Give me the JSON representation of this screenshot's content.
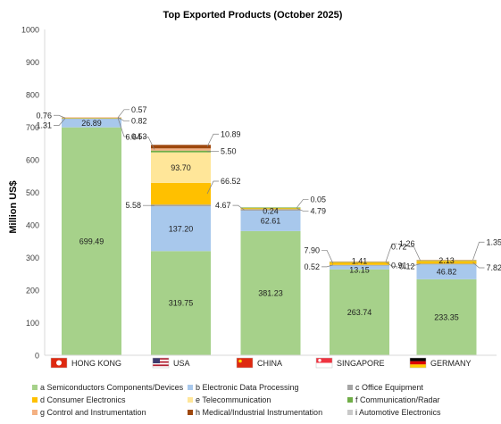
{
  "chart_data": {
    "type": "bar",
    "stacked": true,
    "title": "Top Exported Products (October 2025)",
    "xlabel": "",
    "ylabel": "Million US$",
    "ylim": [
      0,
      1000
    ],
    "yticks": [
      0,
      100,
      200,
      300,
      400,
      500,
      600,
      700,
      800,
      900,
      1000
    ],
    "grid": false,
    "legend_position": "bottom",
    "categories": [
      "HONG KONG",
      "USA",
      "CHINA",
      "SINGAPORE",
      "GERMANY"
    ],
    "category_flags": [
      "hong-kong-flag-icon",
      "usa-flag-icon",
      "china-flag-icon",
      "singapore-flag-icon",
      "germany-flag-icon"
    ],
    "series": [
      {
        "name": "a Semiconductors Components/Devices",
        "color": "#a6d18a",
        "values": [
          699.49,
          319.75,
          381.23,
          263.74,
          233.35
        ]
      },
      {
        "name": "b Electronic Data Processing",
        "color": "#a8c8ec",
        "values": [
          26.89,
          137.2,
          62.61,
          13.15,
          46.82
        ]
      },
      {
        "name": "c Office Equipment",
        "color": "#a5a5a5",
        "values": [
          1.31,
          5.58,
          4.67,
          0.52,
          0.91
        ]
      },
      {
        "name": "d Consumer Electronics",
        "color": "#ffc000",
        "values": [
          0.76,
          66.52,
          4.79,
          7.9,
          7.82
        ]
      },
      {
        "name": "e Telecommunication",
        "color": "#ffe699",
        "values": [
          0.53,
          93.7,
          0.24,
          1.41,
          2.13
        ]
      },
      {
        "name": "f Communication/Radar",
        "color": "#70ad47",
        "values": [
          0.57,
          5.5,
          0.05,
          0.12,
          0.72
        ]
      },
      {
        "name": "g Control and Instrumentation",
        "color": "#f4b183",
        "values": [
          0.82,
          6.64,
          0.0,
          1.26,
          1.35
        ]
      },
      {
        "name": "h Medical/Industrial Instrumentation",
        "color": "#9e480e",
        "values": [
          0.0,
          10.89,
          0.0,
          0.0,
          0.0
        ]
      },
      {
        "name": "i Automotive Electronics",
        "color": "#c9c9c9",
        "values": [
          0.0,
          0.0,
          0.0,
          0.0,
          0.0
        ]
      }
    ],
    "data_labels": [
      {
        "category": "HONG KONG",
        "labels": [
          {
            "series": 0,
            "text": "699.49",
            "inside": true
          },
          {
            "series": 1,
            "text": "26.89",
            "inside": true
          },
          {
            "series": 2,
            "text": "1.31",
            "side": "left",
            "dy": 8
          },
          {
            "series": 3,
            "text": "0.76",
            "side": "left",
            "dy": -3
          },
          {
            "series": 4,
            "text": "0.53",
            "side": "right",
            "dy": 21
          },
          {
            "series": 5,
            "text": "0.57",
            "side": "right",
            "dy": -9
          },
          {
            "series": 6,
            "text": "0.82",
            "side": "right",
            "dy": 4
          }
        ]
      },
      {
        "category": "USA",
        "labels": [
          {
            "series": 0,
            "text": "319.75",
            "inside": true
          },
          {
            "series": 1,
            "text": "137.20",
            "inside": true
          },
          {
            "series": 2,
            "text": "5.58",
            "side": "left",
            "dy": 0
          },
          {
            "series": 3,
            "text": "66.52",
            "side": "right",
            "dy": -14
          },
          {
            "series": 4,
            "text": "93.70",
            "inside": true
          },
          {
            "series": 5,
            "text": "5.50",
            "side": "right",
            "dy": 0
          },
          {
            "series": 6,
            "text": "6.64",
            "side": "left",
            "dy": -14
          },
          {
            "series": 7,
            "text": "10.89",
            "side": "right",
            "dy": -14
          }
        ]
      },
      {
        "category": "CHINA",
        "labels": [
          {
            "series": 0,
            "text": "381.23",
            "inside": true
          },
          {
            "series": 1,
            "text": "62.61",
            "inside": true
          },
          {
            "series": 2,
            "text": "4.67",
            "side": "left",
            "dy": -5
          },
          {
            "series": 3,
            "text": "4.79",
            "side": "right",
            "dy": 3
          },
          {
            "series": 4,
            "text": "0.24",
            "inside": true,
            "dy": 4
          },
          {
            "series": 5,
            "text": "0.05",
            "side": "right",
            "dy": -9
          }
        ]
      },
      {
        "category": "SINGAPORE",
        "labels": [
          {
            "series": 0,
            "text": "263.74",
            "inside": true
          },
          {
            "series": 1,
            "text": "13.15",
            "inside": true,
            "dy": 3
          },
          {
            "series": 2,
            "text": "0.52",
            "side": "left",
            "dy": 2
          },
          {
            "series": 3,
            "text": "7.90",
            "side": "left",
            "dy": -15
          },
          {
            "series": 4,
            "text": "1.41",
            "inside": true,
            "dy": -1
          },
          {
            "series": 5,
            "text": "0.12",
            "side": "right",
            "dy": 5
          },
          {
            "series": 6,
            "text": "1.26",
            "side": "right",
            "dy": -20
          }
        ]
      },
      {
        "category": "GERMANY",
        "labels": [
          {
            "series": 0,
            "text": "233.35",
            "inside": true
          },
          {
            "series": 1,
            "text": "46.82",
            "inside": true
          },
          {
            "series": 2,
            "text": "0.91",
            "side": "left",
            "dy": 2
          },
          {
            "series": 3,
            "text": "7.82",
            "side": "right",
            "dy": 6
          },
          {
            "series": 4,
            "text": "2.13",
            "inside": true,
            "dy": 0
          },
          {
            "series": 5,
            "text": "0.72",
            "side": "left",
            "dy": -15
          },
          {
            "series": 6,
            "text": "1.35",
            "side": "right",
            "dy": -20
          }
        ]
      }
    ]
  }
}
